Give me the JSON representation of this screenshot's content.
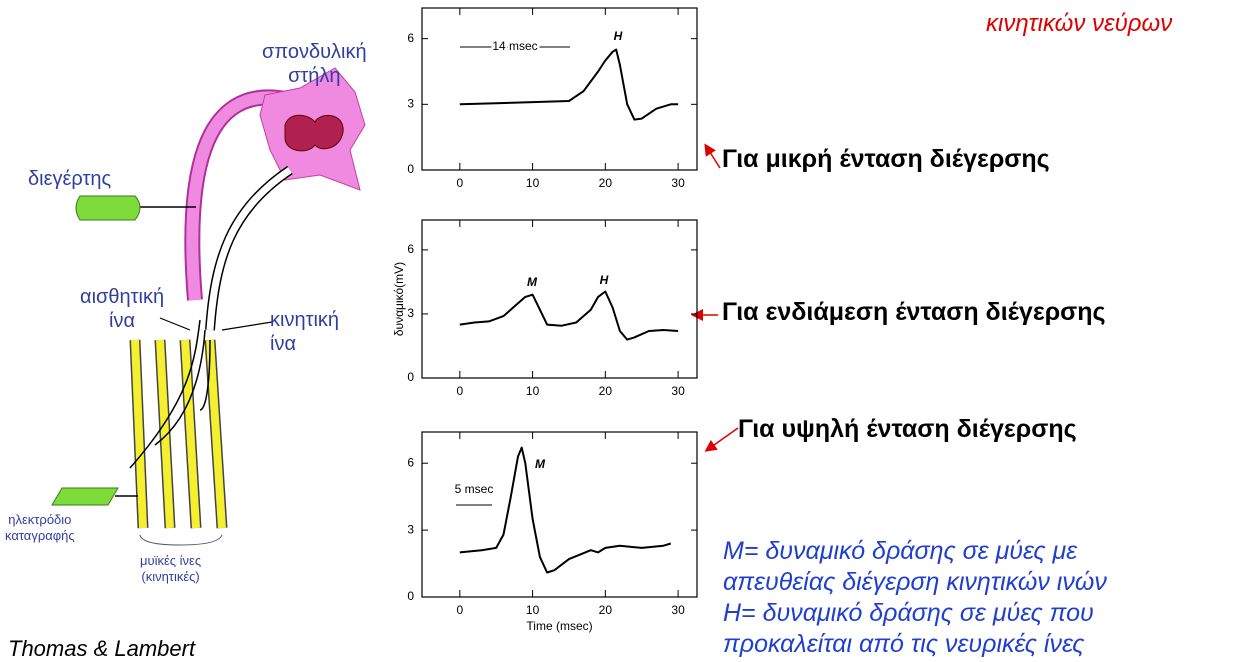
{
  "chart_data": [
    {
      "type": "line",
      "x": [
        0,
        5,
        10,
        15,
        17,
        19,
        20,
        21,
        21.5,
        22,
        23,
        24,
        25,
        27,
        29,
        30
      ],
      "values": [
        3,
        3.05,
        3.1,
        3.15,
        3.6,
        4.5,
        5.0,
        5.4,
        5.5,
        4.8,
        3.0,
        2.3,
        2.35,
        2.8,
        3.0,
        3.0
      ],
      "xlim": [
        -5.2,
        32.6
      ],
      "ylim": [
        0,
        7.4
      ],
      "xticks": [
        0,
        10,
        20,
        30
      ],
      "yticks": [
        0,
        3,
        6
      ],
      "color": "#000000",
      "annotations": [
        "14 msec",
        "H"
      ]
    },
    {
      "type": "line",
      "x": [
        0,
        2,
        4,
        6,
        8,
        9,
        10,
        11,
        12,
        14,
        16,
        18,
        19,
        20,
        21,
        22,
        23,
        24,
        26,
        28,
        30
      ],
      "values": [
        2.5,
        2.6,
        2.65,
        2.9,
        3.5,
        3.8,
        3.9,
        3.2,
        2.5,
        2.45,
        2.6,
        3.2,
        3.8,
        4.05,
        3.3,
        2.2,
        1.8,
        1.9,
        2.2,
        2.25,
        2.2
      ],
      "xlim": [
        -5.2,
        32.6
      ],
      "ylim": [
        0,
        7.4
      ],
      "xticks": [
        0,
        10,
        20,
        30
      ],
      "yticks": [
        0,
        3,
        6
      ],
      "color": "#000000",
      "y_label": "δυναμικό(mV)",
      "annotations": [
        "M",
        "H"
      ]
    },
    {
      "type": "line",
      "x": [
        0,
        3,
        5,
        6,
        7,
        8,
        8.5,
        9,
        10,
        11,
        12,
        13,
        15,
        18,
        19,
        20,
        22,
        25,
        28,
        29
      ],
      "values": [
        2.0,
        2.1,
        2.2,
        2.8,
        4.5,
        6.3,
        6.7,
        6.0,
        3.5,
        1.8,
        1.1,
        1.2,
        1.7,
        2.1,
        2.0,
        2.2,
        2.3,
        2.2,
        2.3,
        2.4
      ],
      "xlim": [
        -5.2,
        32.6
      ],
      "ylim": [
        0,
        7.4
      ],
      "xticks": [
        0,
        10,
        20,
        30
      ],
      "yticks": [
        0,
        3,
        6
      ],
      "color": "#000000",
      "x_label": "Time (msec)",
      "annotations": [
        "5 msec",
        "M"
      ]
    }
  ],
  "header": "κινητικών νεύρων",
  "labels": [
    "Για μικρή ένταση διέγερσης",
    "Για ενδιάμεση ένταση διέγερσης",
    "Για υψηλή ένταση διέγερσης"
  ],
  "notes": [
    "M= δυναμικό δράσης σε μύες με",
    "απευθείας διέγερση κινητικών ινών",
    "H= δυναμικό δράσης σε μύες που",
    "προκαλείται από τις νευρικές ίνες"
  ],
  "diagram": {
    "spine": [
      "σπονδυλική",
      "στήλη"
    ],
    "stimulator": "διεγέρτης",
    "sensory": [
      "αισθητική",
      "ίνα"
    ],
    "motor": [
      "κινητική",
      "ίνα"
    ],
    "electrode": [
      "ηλεκτρόδιο",
      "καταγραφής"
    ],
    "muscle": [
      "μυϊκές ίνες",
      "(κινητικές)"
    ]
  },
  "source": "Thomas & Lambert"
}
